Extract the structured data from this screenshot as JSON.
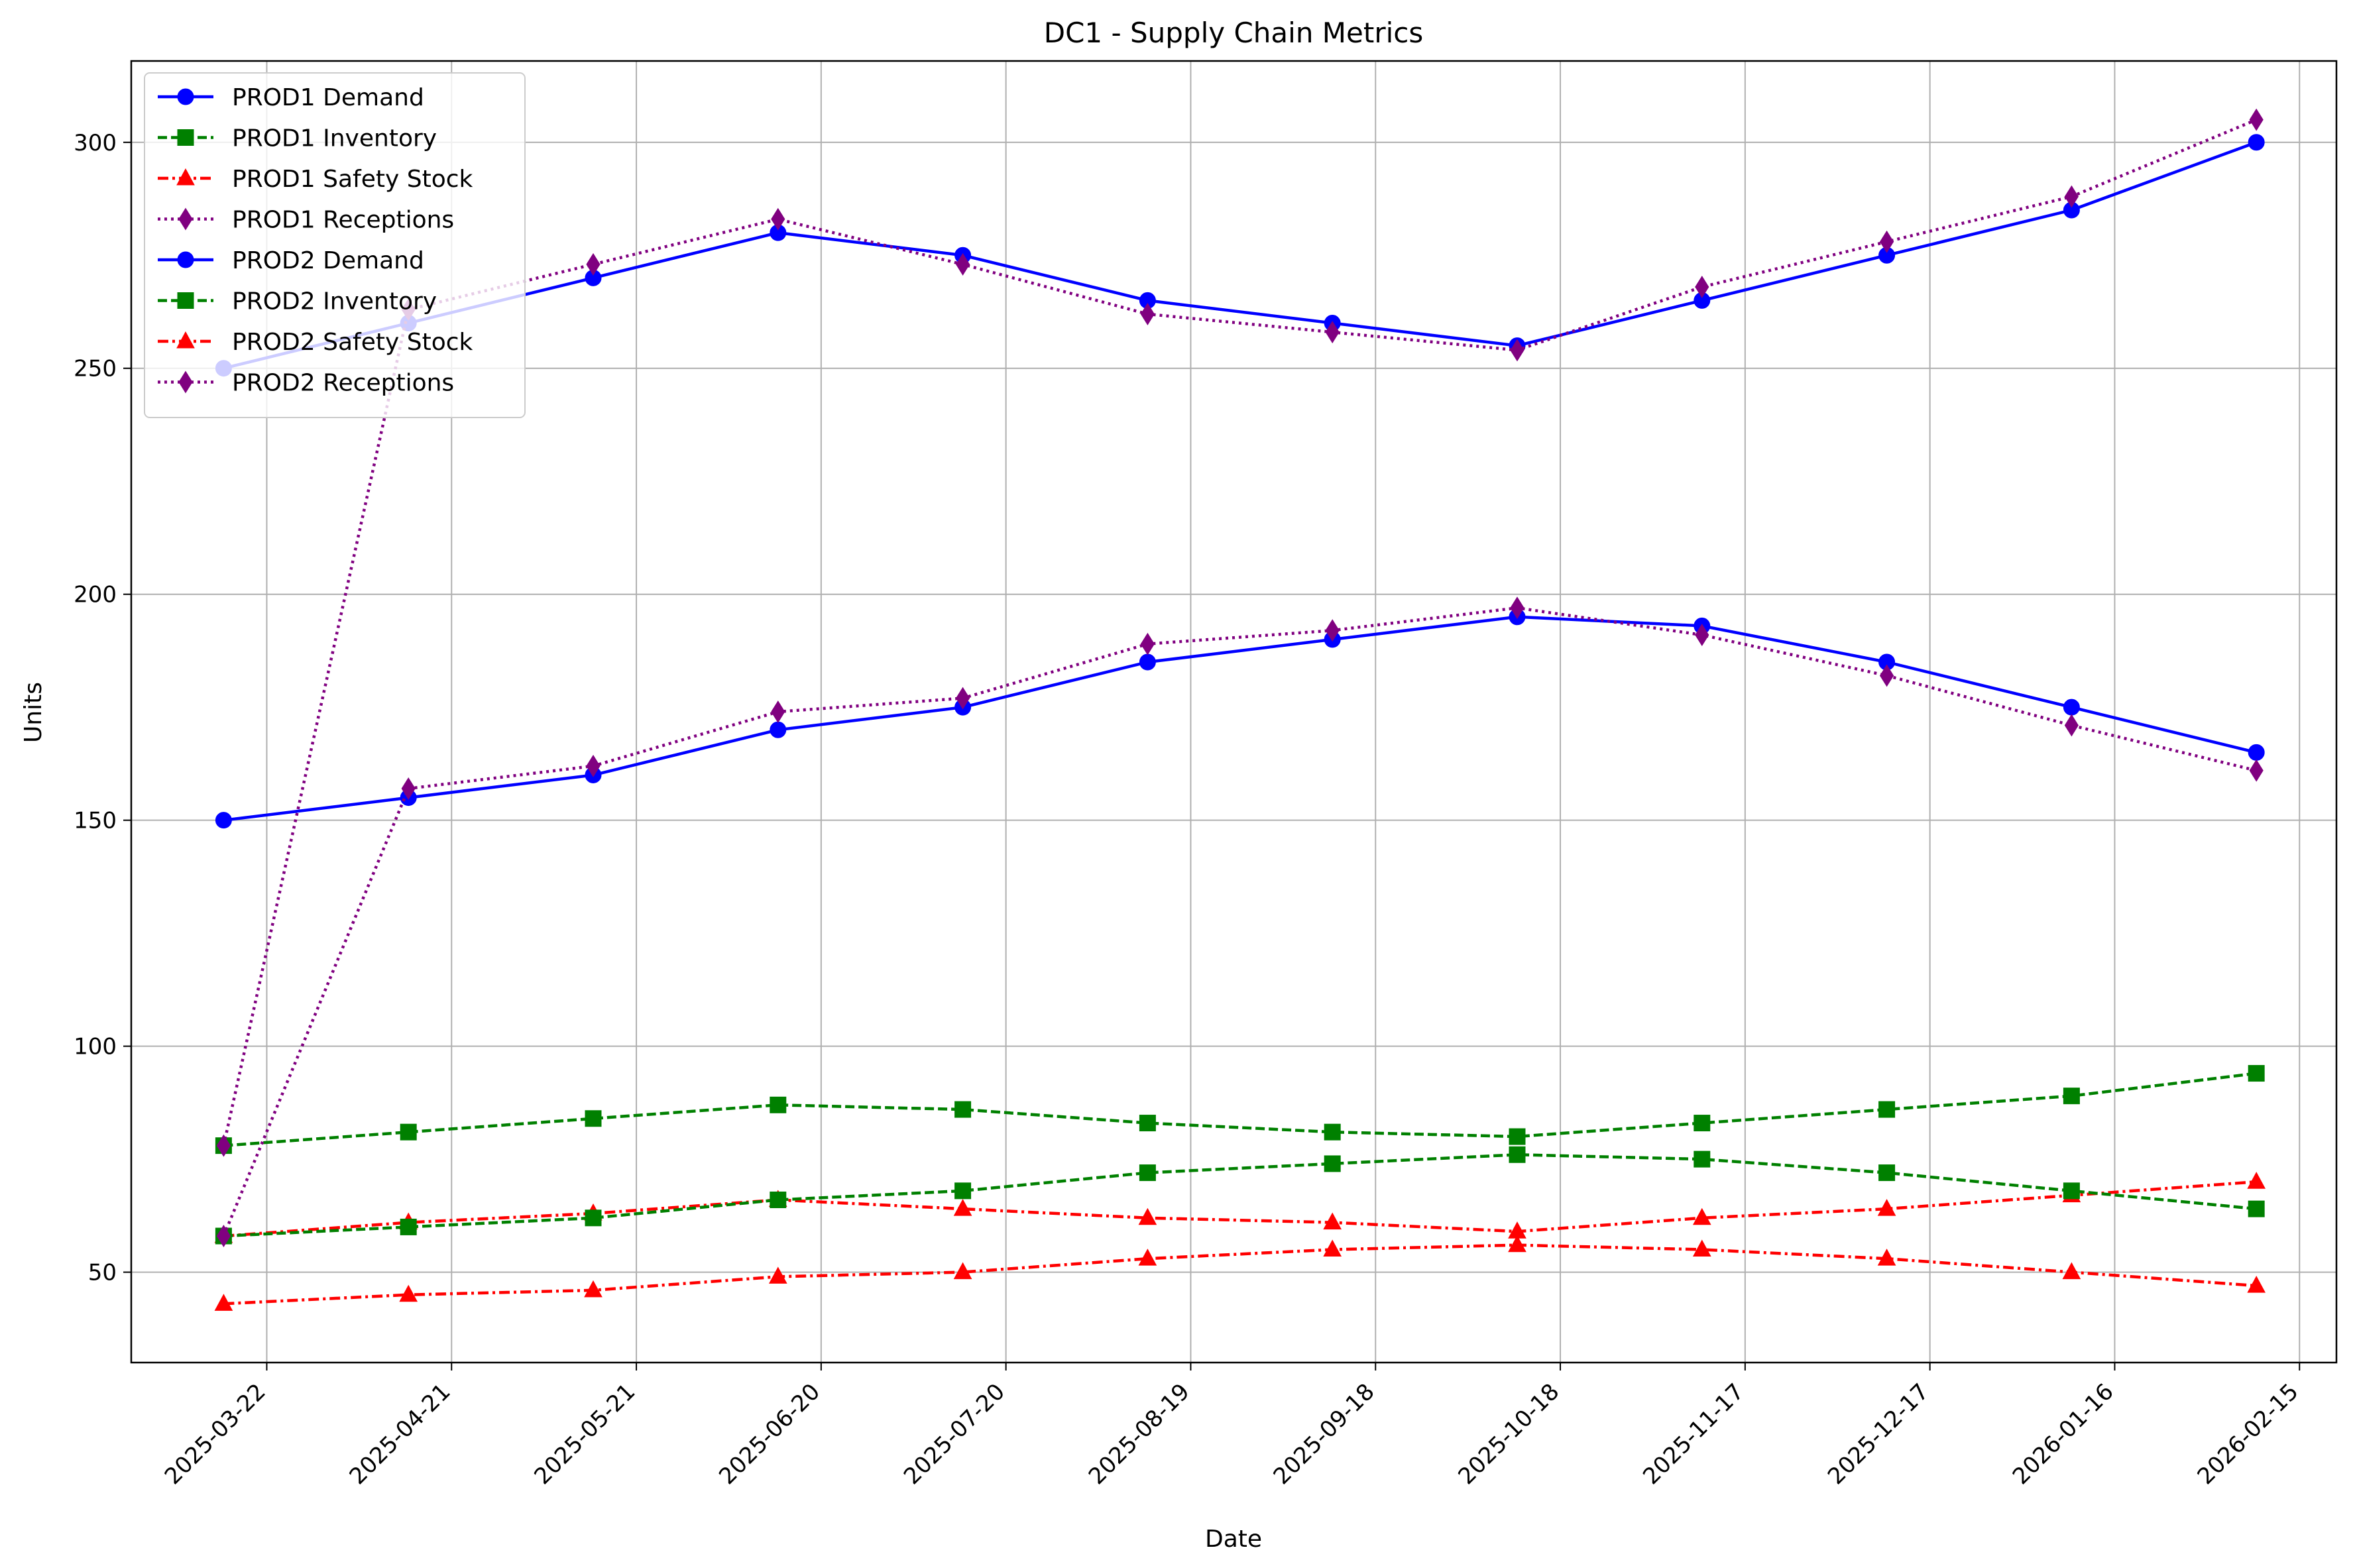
{
  "chart_data": {
    "type": "line",
    "title": "DC1 - Supply Chain Metrics",
    "xlabel": "Date",
    "ylabel": "Units",
    "x": [
      "2025-03-15",
      "2025-04-14",
      "2025-05-14",
      "2025-06-13",
      "2025-07-13",
      "2025-08-12",
      "2025-09-11",
      "2025-10-11",
      "2025-11-10",
      "2025-12-10",
      "2026-01-09",
      "2026-02-08"
    ],
    "x_ticks": [
      "2025-03-22",
      "2025-04-21",
      "2025-05-21",
      "2025-06-20",
      "2025-07-20",
      "2025-08-19",
      "2025-09-18",
      "2025-10-18",
      "2025-11-17",
      "2025-12-17",
      "2026-01-16",
      "2026-02-15"
    ],
    "y_ticks": [
      50,
      100,
      150,
      200,
      250,
      300
    ],
    "ylim": [
      30,
      318
    ],
    "xlim": [
      "2025-02-28",
      "2026-02-21"
    ],
    "grid": true,
    "legend_position": "top-left",
    "series": [
      {
        "name": "PROD1 Demand",
        "color": "#0000ff",
        "dash": "solid",
        "marker": "circle",
        "values": [
          250,
          260,
          270,
          280,
          275,
          265,
          260,
          255,
          265,
          275,
          285,
          300
        ]
      },
      {
        "name": "PROD1 Inventory",
        "color": "#008000",
        "dash": "dashed",
        "marker": "square",
        "values": [
          78,
          81,
          84,
          87,
          86,
          83,
          81,
          80,
          83,
          86,
          89,
          94
        ]
      },
      {
        "name": "PROD1 Safety Stock",
        "color": "#ff0000",
        "dash": "dashdot",
        "marker": "triangle",
        "values": [
          58,
          61,
          63,
          66,
          64,
          62,
          61,
          59,
          62,
          64,
          67,
          70
        ]
      },
      {
        "name": "PROD1 Receptions",
        "color": "#800080",
        "dash": "dotted",
        "marker": "diamond",
        "values": [
          78,
          263,
          273,
          283,
          273,
          262,
          258,
          254,
          268,
          278,
          288,
          305
        ]
      },
      {
        "name": "PROD2 Demand",
        "color": "#0000ff",
        "dash": "solid",
        "marker": "circle",
        "values": [
          150,
          155,
          160,
          170,
          175,
          185,
          190,
          195,
          193,
          185,
          175,
          165
        ]
      },
      {
        "name": "PROD2 Inventory",
        "color": "#008000",
        "dash": "dashed",
        "marker": "square",
        "values": [
          58,
          60,
          62,
          66,
          68,
          72,
          74,
          76,
          75,
          72,
          68,
          64
        ]
      },
      {
        "name": "PROD2 Safety Stock",
        "color": "#ff0000",
        "dash": "dashdot",
        "marker": "triangle",
        "values": [
          43,
          45,
          46,
          49,
          50,
          53,
          55,
          56,
          55,
          53,
          50,
          47
        ]
      },
      {
        "name": "PROD2 Receptions",
        "color": "#800080",
        "dash": "dotted",
        "marker": "diamond",
        "values": [
          58,
          157,
          162,
          174,
          177,
          189,
          192,
          197,
          191,
          182,
          171,
          161
        ]
      }
    ]
  }
}
